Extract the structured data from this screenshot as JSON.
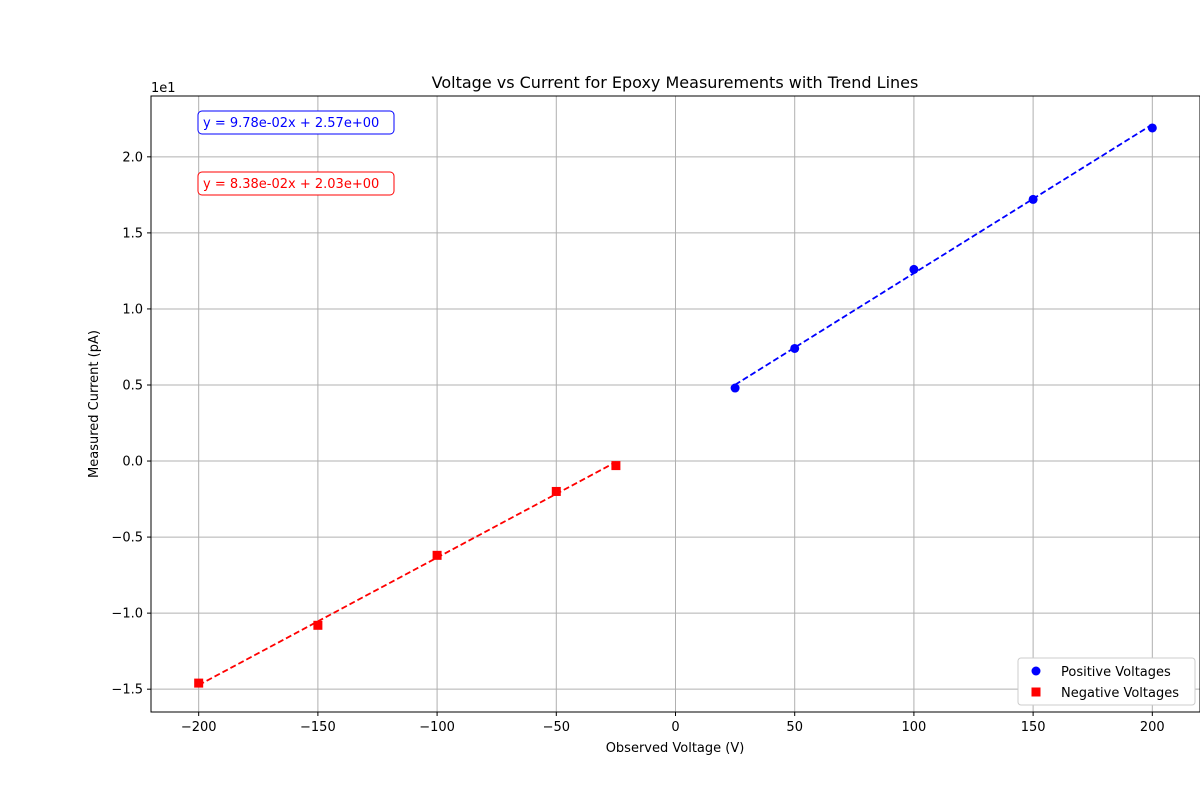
{
  "chart_data": {
    "type": "scatter",
    "title": "Voltage vs Current for Epoxy Measurements with Trend Lines",
    "xlabel": "Observed Voltage (V)",
    "ylabel": "Measured Current (pA)",
    "y_offset_label": "1e1",
    "xlim": [
      -220,
      220
    ],
    "ylim": [
      -16.5,
      24
    ],
    "x_ticks": [
      -200,
      -150,
      -100,
      -50,
      0,
      50,
      100,
      150,
      200
    ],
    "x_tick_labels": [
      "−200",
      "−150",
      "−100",
      "−50",
      "0",
      "50",
      "100",
      "150",
      "200"
    ],
    "y_ticks": [
      -15,
      -10,
      -5,
      0,
      5,
      10,
      15,
      20
    ],
    "y_tick_labels": [
      "−1.5",
      "−1.0",
      "−0.5",
      "0.0",
      "0.5",
      "1.0",
      "1.5",
      "2.0"
    ],
    "grid": true,
    "legend_position": "bottom-right",
    "series": [
      {
        "name": "Positive Voltages",
        "color": "#0000ff",
        "marker": "circle",
        "x": [
          25,
          50,
          100,
          150,
          200
        ],
        "y": [
          4.8,
          7.4,
          12.6,
          17.2,
          21.9
        ],
        "trend": {
          "slope": 0.0978,
          "intercept": 2.57,
          "x_range": [
            25,
            200
          ]
        },
        "equation": "y = 9.78e-02x + 2.57e+00"
      },
      {
        "name": "Negative Voltages",
        "color": "#ff0000",
        "marker": "square",
        "x": [
          -25,
          -50,
          -100,
          -150,
          -200
        ],
        "y": [
          -0.3,
          -2.0,
          -6.2,
          -10.8,
          -14.6
        ],
        "trend": {
          "slope": 0.0838,
          "intercept": 2.03,
          "x_range": [
            -200,
            -25
          ]
        },
        "equation": "y = 8.38e-02x + 2.03e+00"
      }
    ]
  }
}
